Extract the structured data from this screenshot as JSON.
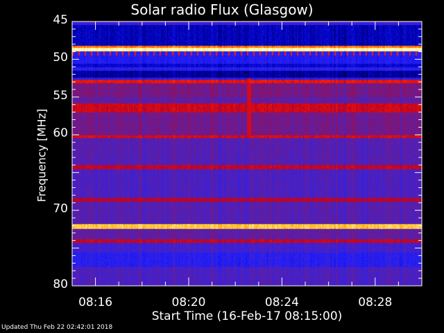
{
  "chart_data": {
    "type": "heatmap",
    "title": "Solar radio Flux (Glasgow)",
    "xlabel": "Start Time (16-Feb-17 08:15:00)",
    "ylabel": "Frequency [MHz]",
    "xlim": [
      "08:15",
      "08:30"
    ],
    "ylim": [
      45,
      80
    ],
    "y_inverted": true,
    "x_ticks": [
      "08:16",
      "08:20",
      "08:24",
      "08:28"
    ],
    "y_ticks": [
      45,
      50,
      55,
      60,
      70,
      80
    ],
    "colormap": [
      "#000000",
      "#0000c0",
      "#2020ff",
      "#6020a0",
      "#c00020",
      "#ff2000",
      "#ffb000",
      "#ffffc0"
    ],
    "bands_mhz_level": [
      [
        45.0,
        45.4,
        0.35
      ],
      [
        45.4,
        48.2,
        0.15
      ],
      [
        48.2,
        48.4,
        0.8
      ],
      [
        48.4,
        48.9,
        1.0
      ],
      [
        48.9,
        49.5,
        0.3
      ],
      [
        49.5,
        50.6,
        0.28
      ],
      [
        50.6,
        51.0,
        0.18
      ],
      [
        51.0,
        51.5,
        0.3
      ],
      [
        51.5,
        52.4,
        0.12
      ],
      [
        52.4,
        52.7,
        0.3
      ],
      [
        52.7,
        53.1,
        0.66
      ],
      [
        53.1,
        55.0,
        0.46
      ],
      [
        55.0,
        55.8,
        0.42
      ],
      [
        55.8,
        57.0,
        0.6
      ],
      [
        57.0,
        60.0,
        0.45
      ],
      [
        60.0,
        60.4,
        0.62
      ],
      [
        60.4,
        64.0,
        0.4
      ],
      [
        64.0,
        64.5,
        0.58
      ],
      [
        64.5,
        68.3,
        0.38
      ],
      [
        68.3,
        68.8,
        0.55
      ],
      [
        68.8,
        71.8,
        0.4
      ],
      [
        71.8,
        72.4,
        0.9
      ],
      [
        72.4,
        73.8,
        0.42
      ],
      [
        73.8,
        74.3,
        0.58
      ],
      [
        74.3,
        75.5,
        0.36
      ],
      [
        75.5,
        77.5,
        0.3
      ],
      [
        77.5,
        80.0,
        0.38
      ]
    ],
    "burst": {
      "time": "08:22:35",
      "freq_range_mhz": [
        52.5,
        60.0
      ],
      "level": 0.62
    }
  },
  "footer": {
    "updated": "Updated Thu Feb 22 02:42:01 2018"
  }
}
